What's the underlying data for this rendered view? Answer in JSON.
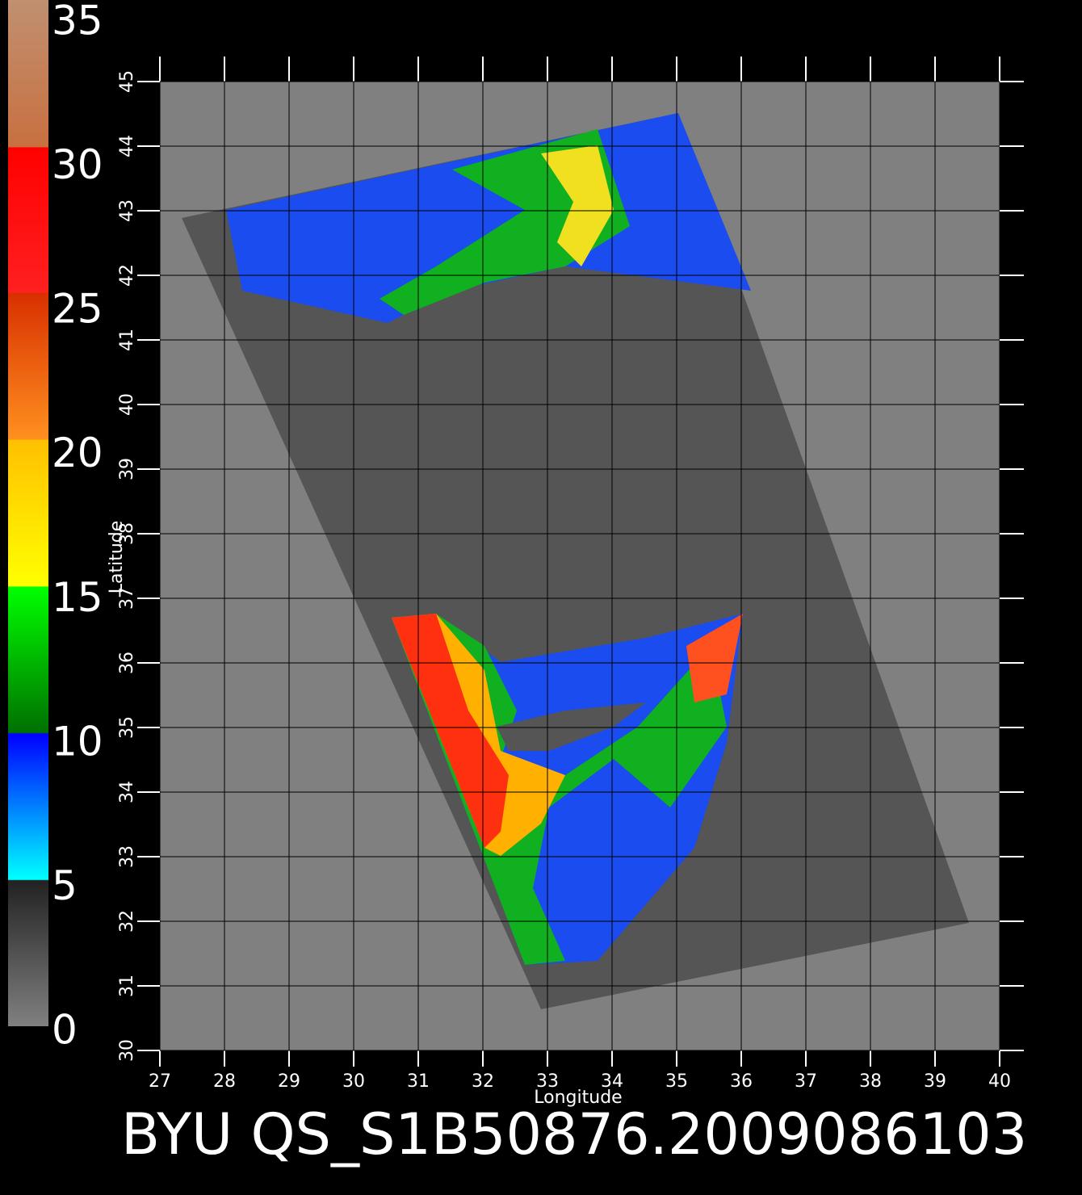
{
  "chart_data": {
    "type": "map",
    "title": "BYU QS_S1B50876.2009086103",
    "xlabel": "Longitude",
    "ylabel": "Latitude",
    "xlim": [
      27,
      40
    ],
    "xticks": [
      27,
      28,
      29,
      30,
      31,
      32,
      33,
      34,
      35,
      36,
      37,
      38,
      39,
      40
    ],
    "ylim": [
      30,
      45
    ],
    "yticks": [
      30,
      31,
      32,
      33,
      34,
      35,
      36,
      37,
      38,
      39,
      40,
      41,
      42,
      43,
      44,
      45
    ],
    "colorbar": {
      "range": [
        0,
        35
      ],
      "ticks": [
        0,
        5,
        10,
        15,
        20,
        25,
        30,
        35
      ]
    },
    "grid": true
  }
}
